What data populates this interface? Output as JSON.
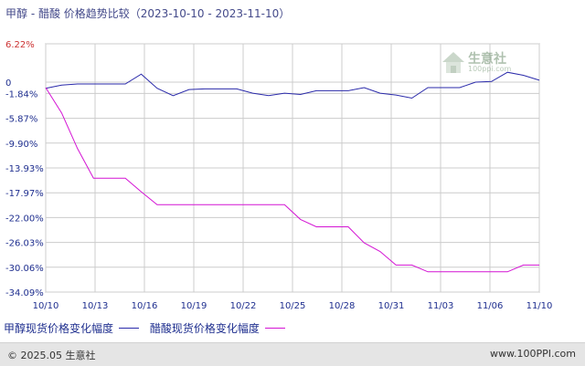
{
  "title": "甲醇 - 醋酸 价格趋势比较（2023-10-10 - 2023-11-10）",
  "footer": {
    "copyright": "© 2025.05 生意社",
    "url": "www.100PPI.com"
  },
  "watermark": {
    "brand": "生意社",
    "domain": "100ppi.com"
  },
  "colors": {
    "series1": "#2a2aaa",
    "series2": "#d414d4",
    "grid": "#cccccc",
    "tick_pos": "#cc3333",
    "tick": "#1f2f8f"
  },
  "chart_data": {
    "type": "line",
    "title": "甲醇 - 醋酸 价格趋势比较（2023-10-10 - 2023-11-10）",
    "xlabel": "",
    "ylabel": "",
    "x_ticks": [
      "10/10",
      "10/13",
      "10/16",
      "10/19",
      "10/22",
      "10/25",
      "10/28",
      "10/31",
      "11/03",
      "11/06",
      "11/10"
    ],
    "y_ticks": [
      "6.22%",
      "0",
      "-1.84%",
      "-5.87%",
      "-9.90%",
      "-13.93%",
      "-17.97%",
      "-22.00%",
      "-26.03%",
      "-30.06%",
      "-34.09%"
    ],
    "y_tick_values": [
      6.22,
      0,
      -1.84,
      -5.87,
      -9.9,
      -13.93,
      -17.97,
      -22.0,
      -26.03,
      -30.06,
      -34.09
    ],
    "ylim": [
      -34.09,
      6.22
    ],
    "x_range": [
      0,
      31
    ],
    "grid": true,
    "legend_position": "bottom",
    "series": [
      {
        "name": "甲醇现货价格变化幅度",
        "color": "#2a2aaa",
        "points": [
          [
            0,
            -1.0
          ],
          [
            1,
            -0.5
          ],
          [
            2,
            -0.3
          ],
          [
            3,
            -0.3
          ],
          [
            4,
            -0.3
          ],
          [
            5,
            -0.3
          ],
          [
            6,
            1.3
          ],
          [
            7,
            -1.0
          ],
          [
            8,
            -2.2
          ],
          [
            9,
            -1.2
          ],
          [
            10,
            -1.1
          ],
          [
            11,
            -1.1
          ],
          [
            12,
            -1.1
          ],
          [
            13,
            -1.8
          ],
          [
            14,
            -2.2
          ],
          [
            15,
            -1.8
          ],
          [
            16,
            -2.0
          ],
          [
            17,
            -1.4
          ],
          [
            18,
            -1.4
          ],
          [
            19,
            -1.4
          ],
          [
            20,
            -0.9
          ],
          [
            21,
            -1.8
          ],
          [
            22,
            -2.1
          ],
          [
            23,
            -2.6
          ],
          [
            24,
            -0.9
          ],
          [
            25,
            -0.9
          ],
          [
            26,
            -0.9
          ],
          [
            27,
            0.0
          ],
          [
            28,
            0.1
          ],
          [
            29,
            1.6
          ],
          [
            30,
            1.1
          ],
          [
            31,
            0.3
          ]
        ]
      },
      {
        "name": "醋酸现货价格变化幅度",
        "color": "#d414d4",
        "points": [
          [
            0,
            -0.9
          ],
          [
            1,
            -5.0
          ],
          [
            2,
            -10.8
          ],
          [
            3,
            -15.6
          ],
          [
            4,
            -15.6
          ],
          [
            5,
            -15.6
          ],
          [
            6,
            -17.8
          ],
          [
            7,
            -19.9
          ],
          [
            8,
            -19.9
          ],
          [
            9,
            -19.9
          ],
          [
            10,
            -19.9
          ],
          [
            11,
            -19.9
          ],
          [
            12,
            -19.9
          ],
          [
            13,
            -19.9
          ],
          [
            14,
            -19.9
          ],
          [
            15,
            -19.9
          ],
          [
            16,
            -22.3
          ],
          [
            17,
            -23.5
          ],
          [
            18,
            -23.5
          ],
          [
            19,
            -23.5
          ],
          [
            20,
            -26.1
          ],
          [
            21,
            -27.5
          ],
          [
            22,
            -29.7
          ],
          [
            23,
            -29.7
          ],
          [
            24,
            -30.8
          ],
          [
            25,
            -30.8
          ],
          [
            26,
            -30.8
          ],
          [
            27,
            -30.8
          ],
          [
            28,
            -30.8
          ],
          [
            29,
            -30.8
          ],
          [
            30,
            -29.7
          ],
          [
            31,
            -29.7
          ]
        ]
      }
    ]
  }
}
